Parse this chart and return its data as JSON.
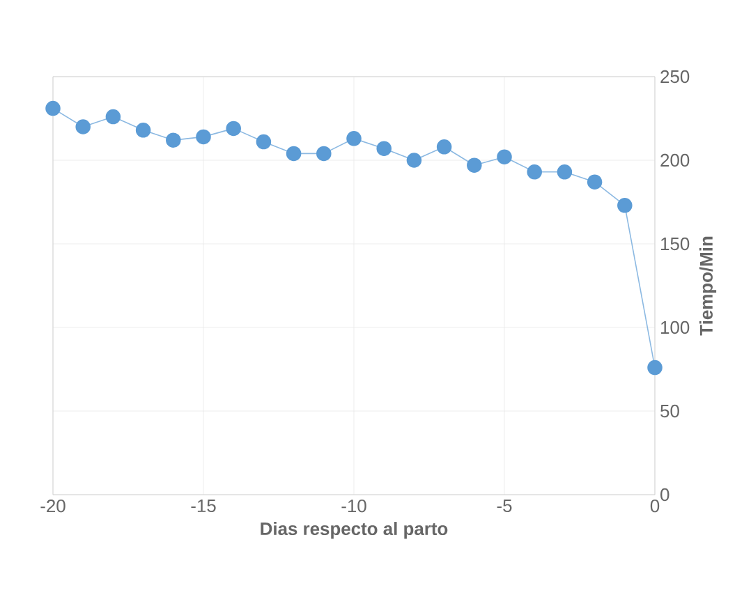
{
  "chart_data": {
    "type": "line",
    "xlabel": "Dias respecto al parto",
    "ylabel": "Tiempo/Min",
    "x": [
      -20,
      -19,
      -18,
      -17,
      -16,
      -15,
      -14,
      -13,
      -12,
      -11,
      -10,
      -9,
      -8,
      -7,
      -6,
      -5,
      -4,
      -3,
      -2,
      -1,
      0
    ],
    "series": [
      {
        "color": "#5b9bd5",
        "values": [
          231,
          220,
          226,
          218,
          212,
          214,
          219,
          211,
          204,
          204,
          213,
          207,
          200,
          208,
          197,
          202,
          193,
          193,
          187,
          173,
          76
        ]
      }
    ],
    "xlim": [
      -20,
      0
    ],
    "xticks": [
      -20,
      -15,
      -10,
      -5,
      0
    ],
    "ylim": [
      0,
      250
    ],
    "yticks": [
      0,
      50,
      100,
      150,
      200,
      250
    ],
    "grid": true,
    "marker": "circle",
    "line_style": "solid"
  }
}
